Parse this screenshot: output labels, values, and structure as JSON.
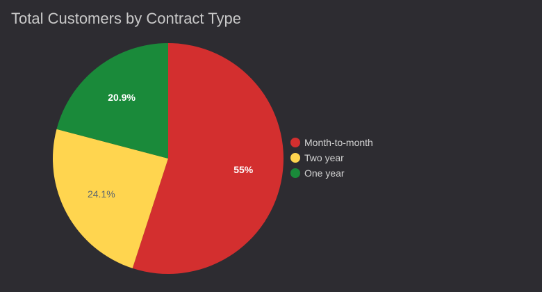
{
  "title": "Total Customers by Contract Type",
  "chart_data": {
    "type": "pie",
    "title": "Total Customers by Contract Type",
    "slices": [
      {
        "label": "Month-to-month",
        "value": 55,
        "display": "55%",
        "color": "#d32f2f",
        "label_color": "#ffffff"
      },
      {
        "label": "Two year",
        "value": 24.1,
        "display": "24.1%",
        "color": "#ffd54f",
        "label_color": "#5a6570"
      },
      {
        "label": "One year",
        "value": 20.9,
        "display": "20.9%",
        "color": "#1a8a3a",
        "label_color": "#ffffff"
      }
    ],
    "start": "top",
    "direction": "clockwise",
    "legend": {
      "position": "right",
      "entries": [
        "Month-to-month",
        "Two year",
        "One year"
      ]
    },
    "background": "#2d2c31"
  }
}
